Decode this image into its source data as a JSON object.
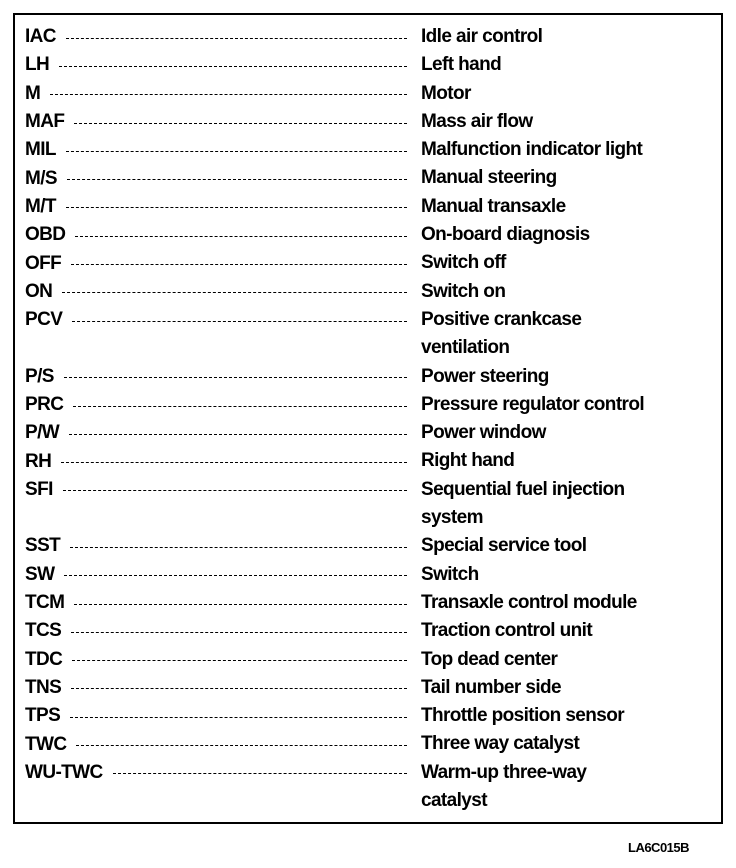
{
  "entries": [
    {
      "abbr": "IAC",
      "def": [
        "Idle air control"
      ]
    },
    {
      "abbr": "LH",
      "def": [
        "Left hand"
      ]
    },
    {
      "abbr": "M",
      "def": [
        "Motor"
      ]
    },
    {
      "abbr": "MAF",
      "def": [
        "Mass air flow"
      ]
    },
    {
      "abbr": "MIL",
      "def": [
        "Malfunction indicator light"
      ]
    },
    {
      "abbr": "M/S",
      "def": [
        "Manual steering"
      ]
    },
    {
      "abbr": "M/T",
      "def": [
        "Manual transaxle"
      ]
    },
    {
      "abbr": "OBD",
      "def": [
        "On-board diagnosis"
      ]
    },
    {
      "abbr": "OFF",
      "def": [
        "Switch off"
      ]
    },
    {
      "abbr": "ON",
      "def": [
        "Switch on"
      ]
    },
    {
      "abbr": "PCV",
      "def": [
        "Positive crankcase",
        "ventilation"
      ]
    },
    {
      "abbr": "P/S",
      "def": [
        "Power steering"
      ]
    },
    {
      "abbr": "PRC",
      "def": [
        "Pressure regulator control"
      ]
    },
    {
      "abbr": "P/W",
      "def": [
        "Power window"
      ]
    },
    {
      "abbr": "RH",
      "def": [
        "Right hand"
      ]
    },
    {
      "abbr": "SFI",
      "def": [
        "Sequential fuel injection",
        "system"
      ]
    },
    {
      "abbr": "SST",
      "def": [
        "Special service tool"
      ]
    },
    {
      "abbr": "SW",
      "def": [
        "Switch"
      ]
    },
    {
      "abbr": "TCM",
      "def": [
        "Transaxle control module"
      ]
    },
    {
      "abbr": "TCS",
      "def": [
        "Traction control unit"
      ]
    },
    {
      "abbr": "TDC",
      "def": [
        "Top dead center"
      ]
    },
    {
      "abbr": "TNS",
      "def": [
        "Tail number side"
      ]
    },
    {
      "abbr": "TPS",
      "def": [
        "Throttle position sensor"
      ]
    },
    {
      "abbr": "TWC",
      "def": [
        "Three way catalyst"
      ]
    },
    {
      "abbr": "WU-TWC",
      "def": [
        "Warm-up three-way",
        "catalyst"
      ]
    }
  ],
  "figure_code": "LA6C015B"
}
